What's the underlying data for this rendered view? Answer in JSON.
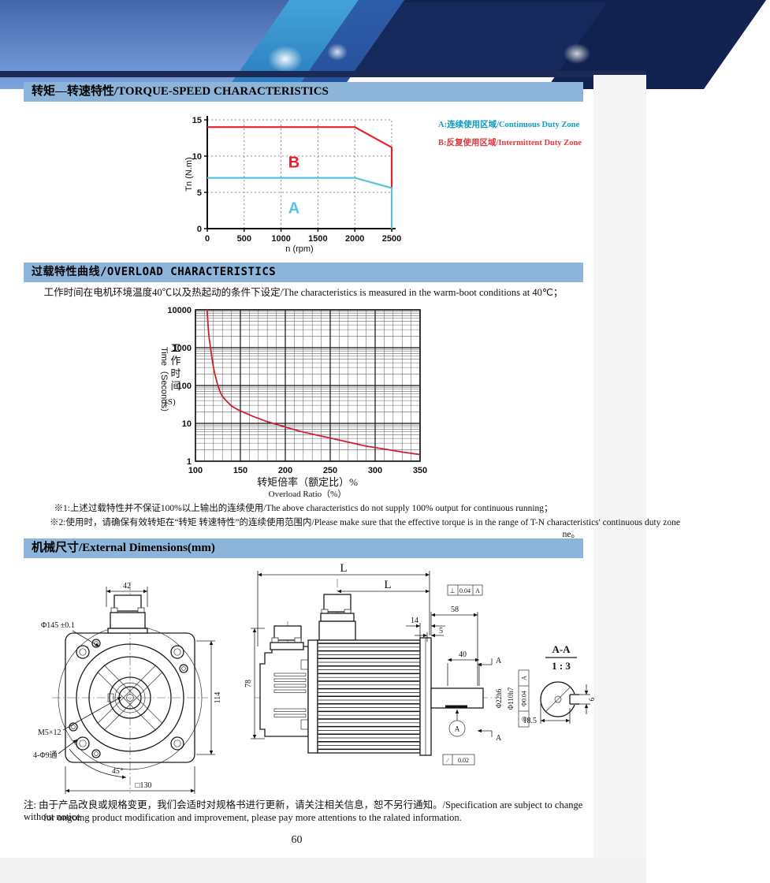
{
  "sections": {
    "torque_speed": {
      "title": "转矩—转速特性/TORQUE-SPEED CHARACTERISTICS",
      "legend": [
        {
          "label": "A:连续使用区域/Continuous Duty Zone",
          "color": "#0e9bc0"
        },
        {
          "label": "B:反复使用区域/Intermittent Duty Zone",
          "color": "#e0393f"
        }
      ]
    },
    "overload": {
      "title": "过载特性曲线/OVERLOAD CHARACTERISTICS",
      "description": "工作时间在电机环境温度40℃以及热起动的条件下设定/The characteristics is measured in the warm-boot conditions at 40℃；",
      "notes": [
        "※1:上述过载特性并不保证100%以上输出的连续使用/The above characteristics do not supply 100% output for continuous running；",
        "※2:使用时，请确保有效转矩在“转矩 转速特性”的连续使用范围内/Please make sure that the effective torque is in the range of T-N characteristics' continuous duty zone",
        "ne。"
      ]
    },
    "dimensions": {
      "title": "机械尺寸/External Dimensions(mm)",
      "front_view": {
        "connector_width": "42",
        "flange_diameter": "Φ145 ±0.1",
        "body_height": "114",
        "tap_hole": "M5×12",
        "mount_holes": "4-Φ9通",
        "hole_angle": "45°",
        "frame_size": "□130"
      },
      "side_view": {
        "overall_length": "L",
        "length2": "L",
        "tol_frame": [
          "⊥",
          "0.04",
          "A"
        ],
        "shaft_length": "58",
        "flange_offset": "14",
        "spigot_depth": "5",
        "key_length": "40",
        "encoder_height": "78",
        "shaft_diameter": "Φ22h6",
        "spigot_diameter": "Φ110h7",
        "runout_frame": [
          "◎",
          "Φ0.04",
          "A"
        ],
        "flat_frame": [
          "∕",
          "0.02"
        ],
        "section_mark_top": "A",
        "section_mark_bottom": "A",
        "datum": "A"
      },
      "section_view": {
        "title": "A-A",
        "scale": "1 : 3",
        "across_flat": "18.5",
        "key_width": "6"
      }
    }
  },
  "footer": {
    "note_line1": "注: 由于产品改良或规格变更，我们会适时对规格书进行更新，请关注相关信息，恕不另行通知。/Specification are subject to change without notice",
    "note_line2": "for ongoing product modification and improvement, please pay more attentions to the ralated information.",
    "page_number": "60"
  },
  "chart_data": [
    {
      "type": "line",
      "title": "Torque-Speed Characteristics",
      "xlabel": "n (rpm)",
      "ylabel": "Tn (N.m)",
      "xlim": [
        0,
        2500
      ],
      "ylim": [
        0,
        15
      ],
      "xticks": [
        0,
        500,
        1000,
        1500,
        2000,
        2500
      ],
      "yticks": [
        0,
        5,
        10,
        15
      ],
      "grid": "dotted",
      "legend_position": "right",
      "series": [
        {
          "name": "B intermittent duty limit",
          "color": "#e62129",
          "points": [
            [
              0,
              14
            ],
            [
              2000,
              14
            ],
            [
              2500,
              11.2
            ],
            [
              2500,
              5.6
            ]
          ]
        },
        {
          "name": "A continuous duty limit",
          "color": "#56c3d8",
          "points": [
            [
              0,
              7
            ],
            [
              2000,
              7
            ],
            [
              2500,
              5.6
            ],
            [
              2500,
              0
            ]
          ]
        }
      ],
      "zone_labels": [
        {
          "text": "B",
          "x": 1175,
          "y": 8.4,
          "color": "#e62129"
        },
        {
          "text": "A",
          "x": 1175,
          "y": 2.1,
          "color": "#56c3d8"
        }
      ]
    },
    {
      "type": "line",
      "title": "Overload Characteristics",
      "xlabel_cn": "转矩倍率（额定比）%",
      "xlabel_en": "Overload Ratio（%）",
      "ylabel_cn": "工作时间",
      "ylabel_en": "Time（Seconds）",
      "ylabel_unit": "(S)",
      "xlim": [
        100,
        350
      ],
      "x_minor_step": 10,
      "ylog_lim": [
        1,
        10000
      ],
      "xticks": [
        100,
        150,
        200,
        250,
        300,
        350
      ],
      "yticks": [
        1,
        10,
        100,
        1000,
        10000
      ],
      "grid": "log-dense",
      "series": [
        {
          "name": "overload time curve",
          "color": "#cf2030",
          "points": [
            [
              113,
              10000
            ],
            [
              114,
              4000
            ],
            [
              115,
              2000
            ],
            [
              117,
              900
            ],
            [
              119,
              420
            ],
            [
              121,
              230
            ],
            [
              124,
              120
            ],
            [
              127,
              72
            ],
            [
              130,
              52
            ],
            [
              134,
              40
            ],
            [
              140,
              29
            ],
            [
              147,
              23
            ],
            [
              155,
              19
            ],
            [
              165,
              15
            ],
            [
              178,
              11.5
            ],
            [
              200,
              8
            ],
            [
              215,
              6.3
            ],
            [
              230,
              5.2
            ],
            [
              250,
              4.1
            ],
            [
              270,
              3.2
            ],
            [
              290,
              2.5
            ],
            [
              310,
              2.1
            ],
            [
              330,
              1.75
            ],
            [
              350,
              1.5
            ]
          ]
        }
      ]
    }
  ]
}
